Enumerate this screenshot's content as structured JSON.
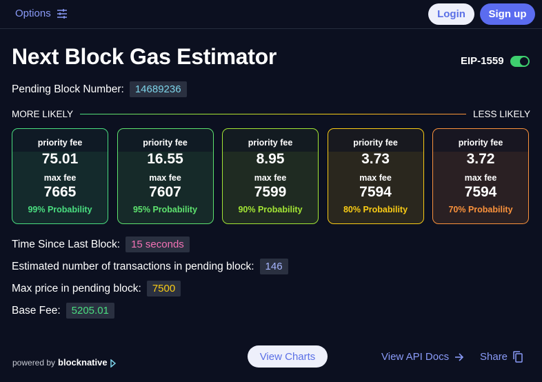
{
  "header": {
    "options_label": "Options",
    "login_label": "Login",
    "signup_label": "Sign up"
  },
  "title": "Next Block Gas Estimator",
  "eip": {
    "label": "EIP-1559",
    "enabled": true
  },
  "pending_block": {
    "label": "Pending Block Number:",
    "value": "14689236"
  },
  "likelihood": {
    "left": "MORE LIKELY",
    "right": "LESS LIKELY"
  },
  "cards": [
    {
      "priority_label": "priority fee",
      "priority_value": "75.01",
      "max_label": "max fee",
      "max_value": "7665",
      "probability": "99% Probability",
      "color": "#4ade80"
    },
    {
      "priority_label": "priority fee",
      "priority_value": "16.55",
      "max_label": "max fee",
      "max_value": "7607",
      "probability": "95% Probability",
      "color": "#5ee36f"
    },
    {
      "priority_label": "priority fee",
      "priority_value": "8.95",
      "max_label": "max fee",
      "max_value": "7599",
      "probability": "90% Probability",
      "color": "#a3e635"
    },
    {
      "priority_label": "priority fee",
      "priority_value": "3.73",
      "max_label": "max fee",
      "max_value": "7594",
      "probability": "80% Probability",
      "color": "#facc15"
    },
    {
      "priority_label": "priority fee",
      "priority_value": "3.72",
      "max_label": "max fee",
      "max_value": "7594",
      "probability": "70% Probability",
      "color": "#fb923c"
    }
  ],
  "stats": {
    "time_since": {
      "label": "Time Since Last Block:",
      "value": "15 seconds",
      "color": "#f472b6"
    },
    "tx_count": {
      "label": "Estimated number of transactions in pending block:",
      "value": "146",
      "color": "#a5b4fc"
    },
    "max_price": {
      "label": "Max price in pending block:",
      "value": "7500",
      "color": "#facc15"
    },
    "base_fee": {
      "label": "Base Fee:",
      "value": "5205.01",
      "color": "#4ade80"
    }
  },
  "footer": {
    "powered_by": "powered by",
    "brand": "blocknative",
    "view_charts": "View Charts",
    "api_docs": "View API Docs",
    "share": "Share"
  },
  "colors": {
    "background": "#0c1020",
    "accent": "#5b6cf0",
    "link": "#8a9bf8",
    "pending_block_value": "#7dd3e8"
  }
}
